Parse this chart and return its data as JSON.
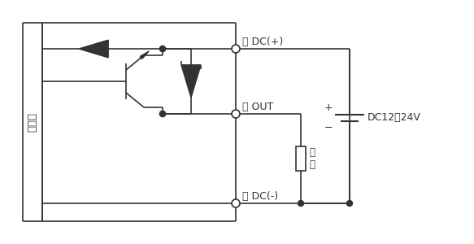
{
  "bg_color": "#ffffff",
  "line_color": "#333333",
  "text_color": "#333333",
  "fig_width": 5.83,
  "fig_height": 3.0,
  "dpi": 100,
  "label_shukairou": "主回路",
  "label_cha": "茶 DC(+)",
  "label_kuro": "黒 OUT",
  "label_ao": "青 DC(-)",
  "label_dc": "DC12～24V",
  "label_fuka": "負荷"
}
